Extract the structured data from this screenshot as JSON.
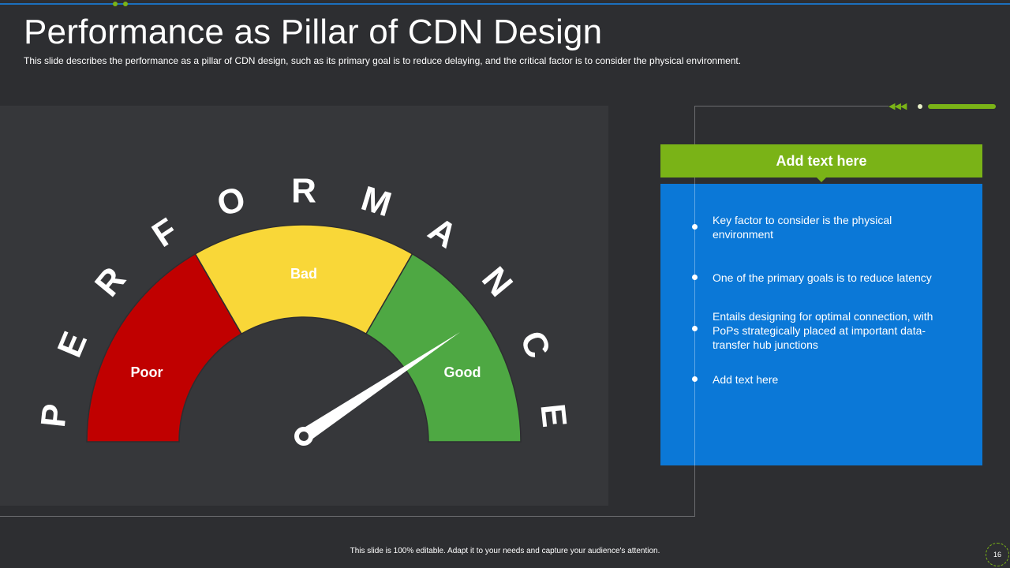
{
  "header": {
    "title": "Performance as Pillar of CDN Design",
    "subtitle": "This slide describes the performance  as a pillar of CDN design, such as its primary goal is to reduce delaying, and the critical factor is to consider the physical environment."
  },
  "gauge": {
    "arc_letters": [
      "P",
      "E",
      "R",
      "F",
      "O",
      "R",
      "M",
      "A",
      "N",
      "C",
      "E"
    ],
    "segments": [
      {
        "label": "Poor",
        "color": "#c00000"
      },
      {
        "label": "Bad",
        "color": "#f9d738"
      },
      {
        "label": "Good",
        "color": "#4ea843"
      }
    ],
    "needle_color": "#ffffff"
  },
  "info_box": {
    "header": "Add text here",
    "bullets": [
      "Key factor to consider is the physical environment",
      "One of the primary goals is to reduce latency",
      "Entails designing for optimal connection, with PoPs strategically placed at important data-transfer hub junctions",
      "Add text here"
    ]
  },
  "colors": {
    "accent_green": "#7ab317",
    "box_blue": "#0b78d7",
    "background": "#2d2e31"
  },
  "footer": {
    "note": "This slide is 100% editable. Adapt it to your needs and capture your audience's attention.",
    "page_number": "16"
  }
}
